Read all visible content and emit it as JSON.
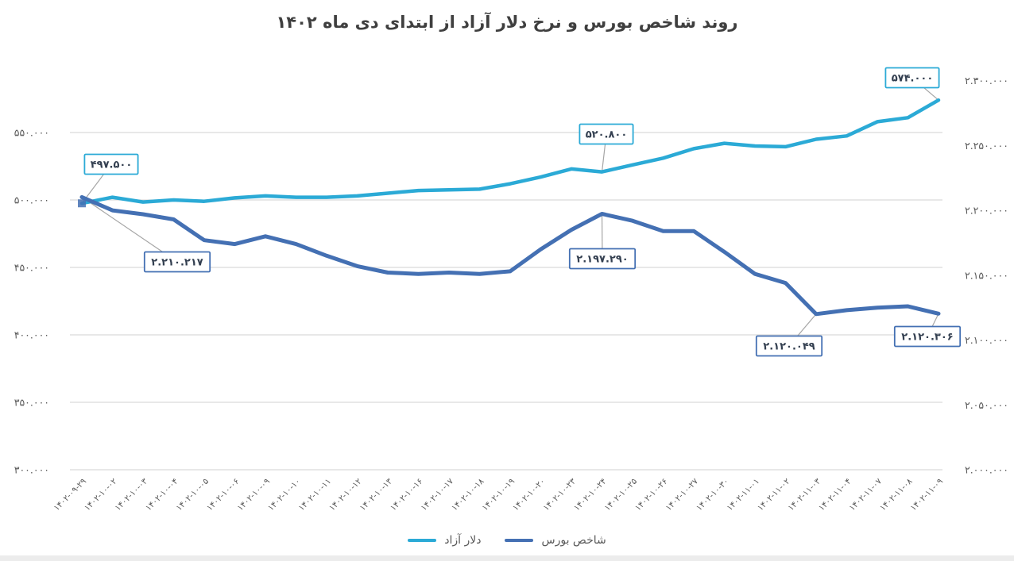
{
  "title": "روند شاخص بورس و نرخ دلار آزاد از ابتدای دی ماه ۱۴۰۲",
  "colors": {
    "dollar_line": "#2baad6",
    "index_line": "#4470b3",
    "grid": "#d9d9d9",
    "axis_text": "#595959",
    "callout_text": "#333f50",
    "leader_line": "#a6a6a6",
    "title_text": "#3f3f3f"
  },
  "legend": {
    "items": [
      {
        "id": "dollar",
        "label": "دلار آزاد",
        "color": "#2baad6"
      },
      {
        "id": "index",
        "label": "شاخص بورس",
        "color": "#4470b3"
      }
    ]
  },
  "chart_data": {
    "type": "line",
    "title": "روند شاخص بورس و نرخ دلار آزاد از ابتدای دی ماه ۱۴۰۲",
    "x": [
      "۱۴۰۲-۰۹-۲۹",
      "۱۴۰۲-۱۰-۰۲",
      "۱۴۰۲-۱۰-۰۳",
      "۱۴۰۲-۱۰-۰۴",
      "۱۴۰۲-۱۰-۰۵",
      "۱۴۰۲-۱۰-۰۶",
      "۱۴۰۲-۱۰-۰۹",
      "۱۴۰۲-۱۰-۱۰",
      "۱۴۰۲-۱۰-۱۱",
      "۱۴۰۲-۱۰-۱۲",
      "۱۴۰۲-۱۰-۱۳",
      "۱۴۰۲-۱۰-۱۶",
      "۱۴۰۲-۱۰-۱۷",
      "۱۴۰۲-۱۰-۱۸",
      "۱۴۰۲-۱۰-۱۹",
      "۱۴۰۲-۱۰-۲۰",
      "۱۴۰۲-۱۰-۲۳",
      "۱۴۰۲-۱۰-۲۴",
      "۱۴۰۲-۱۰-۲۵",
      "۱۴۰۲-۱۰-۲۶",
      "۱۴۰۲-۱۰-۲۷",
      "۱۴۰۲-۱۰-۳۰",
      "۱۴۰۲-۱۱-۰۱",
      "۱۴۰۲-۱۱-۰۲",
      "۱۴۰۲-۱۱-۰۳",
      "۱۴۰۲-۱۱-۰۴",
      "۱۴۰۲-۱۱-۰۷",
      "۱۴۰۲-۱۱-۰۸",
      "۱۴۰۲-۱۱-۰۹"
    ],
    "series": [
      {
        "id": "dollar",
        "name": "دلار آزاد",
        "axis": "left",
        "color": "#2baad6",
        "width": 4.5,
        "values": [
          497500,
          502000,
          498500,
          500000,
          499000,
          501500,
          503000,
          502000,
          502000,
          503000,
          505000,
          507000,
          507500,
          508000,
          512000,
          517000,
          523000,
          520800,
          526000,
          531000,
          538000,
          542000,
          540000,
          539500,
          545000,
          547500,
          558000,
          561000,
          574000
        ]
      },
      {
        "id": "index",
        "name": "شاخص بورس",
        "axis": "right",
        "color": "#4470b3",
        "width": 5,
        "values": [
          2210217,
          2200000,
          2197000,
          2193000,
          2177000,
          2174000,
          2180000,
          2174000,
          2165000,
          2157000,
          2152000,
          2151000,
          2152000,
          2151000,
          2153000,
          2170000,
          2185000,
          2197290,
          2192000,
          2184000,
          2184000,
          2168000,
          2151000,
          2144000,
          2120049,
          2123000,
          2125000,
          2126000,
          2120306
        ]
      }
    ],
    "left_axis": {
      "ticks": [
        550000,
        500000,
        450000,
        400000,
        350000,
        300000
      ],
      "range": [
        300000,
        600000
      ],
      "gridlines": true
    },
    "right_axis": {
      "ticks": [
        2300000,
        2250000,
        2200000,
        2150000,
        2100000,
        2050000,
        2000000
      ],
      "range": [
        2000000,
        2312000
      ],
      "gridlines": false
    },
    "callouts": [
      {
        "series": "dollar",
        "point": 0,
        "value": 497500,
        "box": [
          140,
          207
        ]
      },
      {
        "series": "index",
        "point": 0,
        "value": 2210217,
        "box": [
          223,
          330
        ]
      },
      {
        "series": "dollar",
        "point": 17,
        "value": 520800,
        "box": [
          763,
          169
        ]
      },
      {
        "series": "index",
        "point": 17,
        "value": 2197290,
        "box": [
          758,
          326
        ]
      },
      {
        "series": "index",
        "point": 24,
        "value": 2120049,
        "box": [
          993,
          436
        ]
      },
      {
        "series": "dollar",
        "point": 28,
        "value": 574000,
        "box": [
          1148,
          98
        ]
      },
      {
        "series": "index",
        "point": 28,
        "value": 2120306,
        "box": [
          1167,
          424
        ]
      }
    ],
    "legend_position": "bottom",
    "grid": true
  }
}
